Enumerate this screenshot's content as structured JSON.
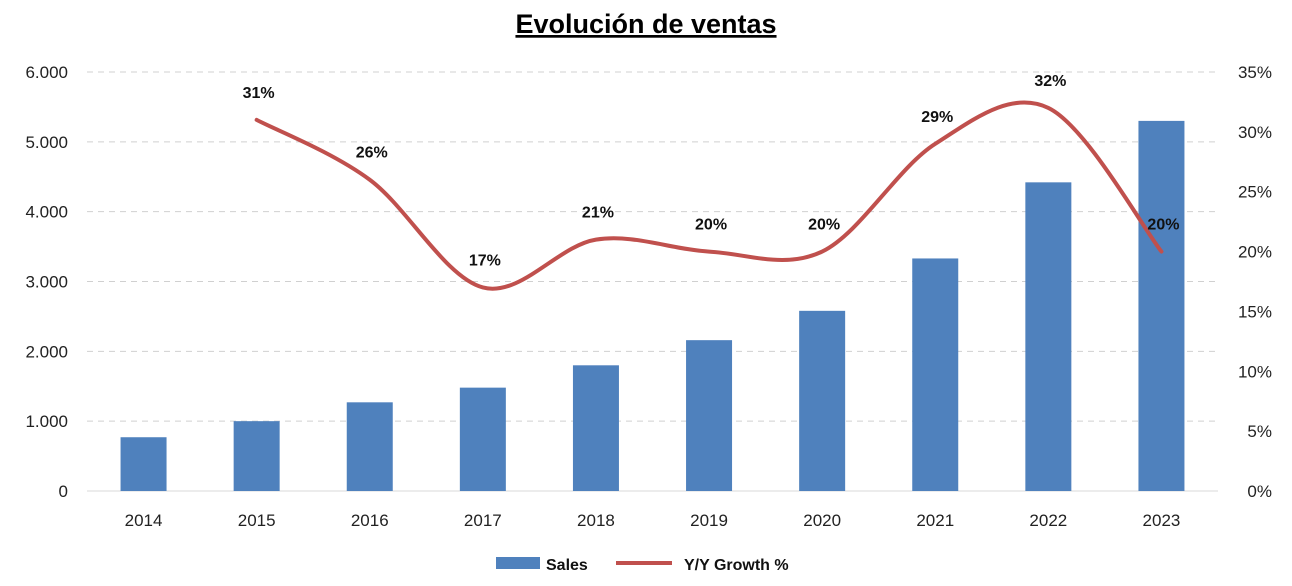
{
  "chart_data": {
    "type": "bar",
    "title": "Evolución de ventas",
    "categories": [
      "2014",
      "2015",
      "2016",
      "2017",
      "2018",
      "2019",
      "2020",
      "2021",
      "2022",
      "2023"
    ],
    "series": [
      {
        "name": "Sales",
        "type": "bar",
        "axis": "left",
        "values": [
          770,
          1000,
          1270,
          1480,
          1800,
          2160,
          2580,
          3330,
          4420,
          5300
        ]
      },
      {
        "name": "Y/Y Growth %",
        "type": "line",
        "axis": "right",
        "values": [
          null,
          31,
          26,
          17,
          21,
          20,
          20,
          29,
          32,
          20
        ],
        "labels": [
          "",
          "31%",
          "26%",
          "17%",
          "21%",
          "20%",
          "20%",
          "29%",
          "32%",
          "20%"
        ]
      }
    ],
    "y_left": {
      "min": 0,
      "max": 6000,
      "step": 1000,
      "tick_labels": [
        "0",
        "1.000",
        "2.000",
        "3.000",
        "4.000",
        "5.000",
        "6.000"
      ]
    },
    "y_right": {
      "min": 0,
      "max": 35,
      "step": 5,
      "tick_labels": [
        "0%",
        "5%",
        "10%",
        "15%",
        "20%",
        "25%",
        "30%",
        "35%"
      ]
    },
    "grid": true,
    "legend_position": "bottom-center",
    "colors": {
      "bar": "#4f81bd",
      "line": "#c0504d",
      "grid": "#d0d0d0"
    }
  }
}
